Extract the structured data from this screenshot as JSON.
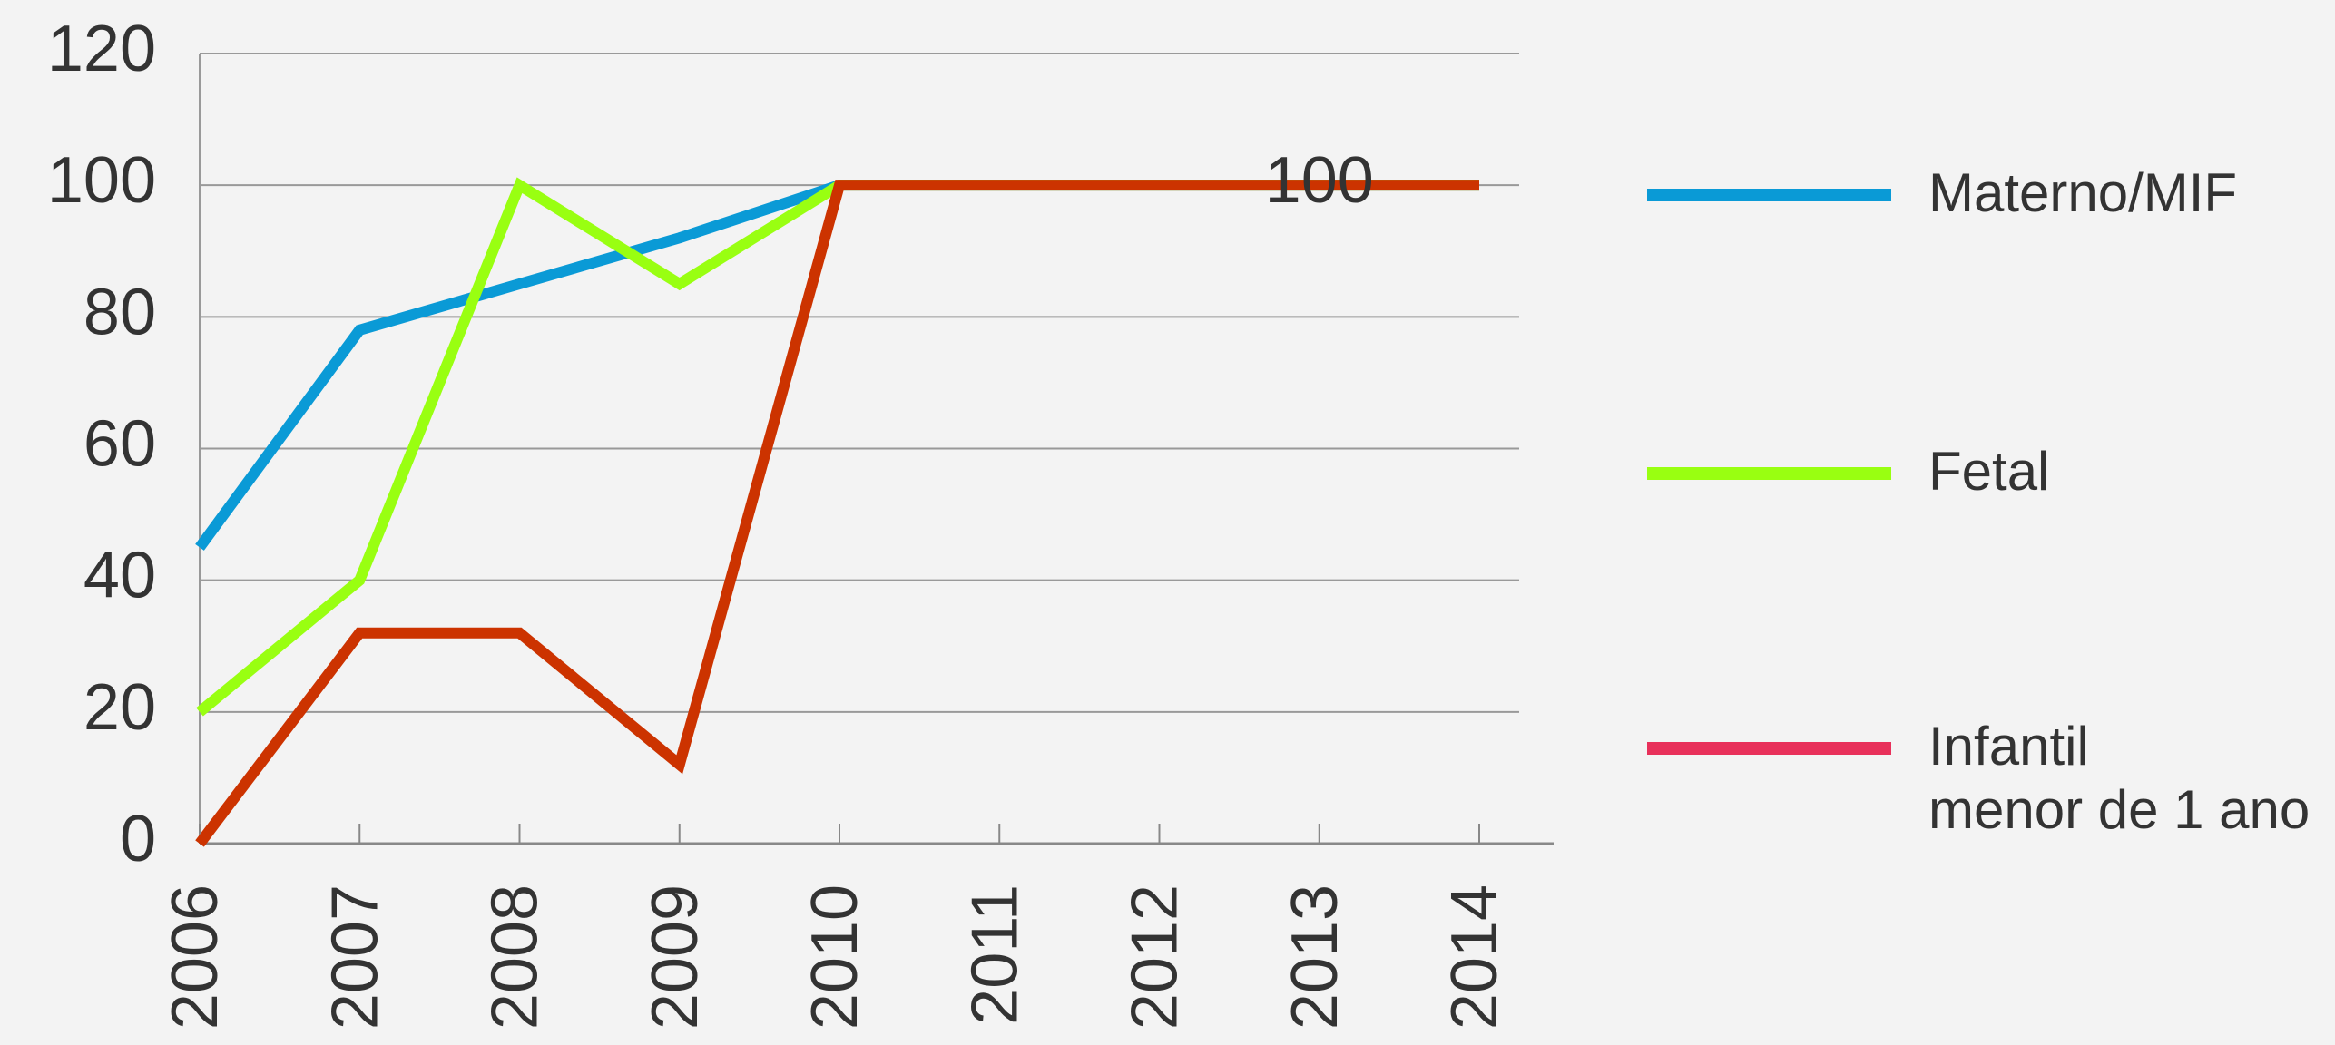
{
  "chart_data": {
    "type": "line",
    "categories": [
      "2006",
      "2007",
      "2008",
      "2009",
      "2010",
      "2011",
      "2012",
      "2013",
      "2014"
    ],
    "series": [
      {
        "name": "Materno/MIF",
        "color": "#0a9ad6",
        "values": [
          45,
          78,
          85,
          92,
          100,
          100,
          100,
          100,
          100
        ]
      },
      {
        "name": "Fetal",
        "color": "#99ff11",
        "values": [
          20,
          40,
          100,
          85,
          100,
          100,
          100,
          100,
          100
        ]
      },
      {
        "name": "Infantil\nmenor de 1 ano",
        "color": "#cc3300",
        "legend_color": "#e8305a",
        "values": [
          0,
          32,
          32,
          12,
          100,
          100,
          100,
          100,
          100
        ]
      }
    ],
    "annotations": [
      {
        "category": "2013",
        "value": 100
      }
    ],
    "ylim": [
      0,
      120
    ],
    "yticks": [
      0,
      20,
      40,
      60,
      80,
      100,
      120
    ],
    "grid": true
  }
}
